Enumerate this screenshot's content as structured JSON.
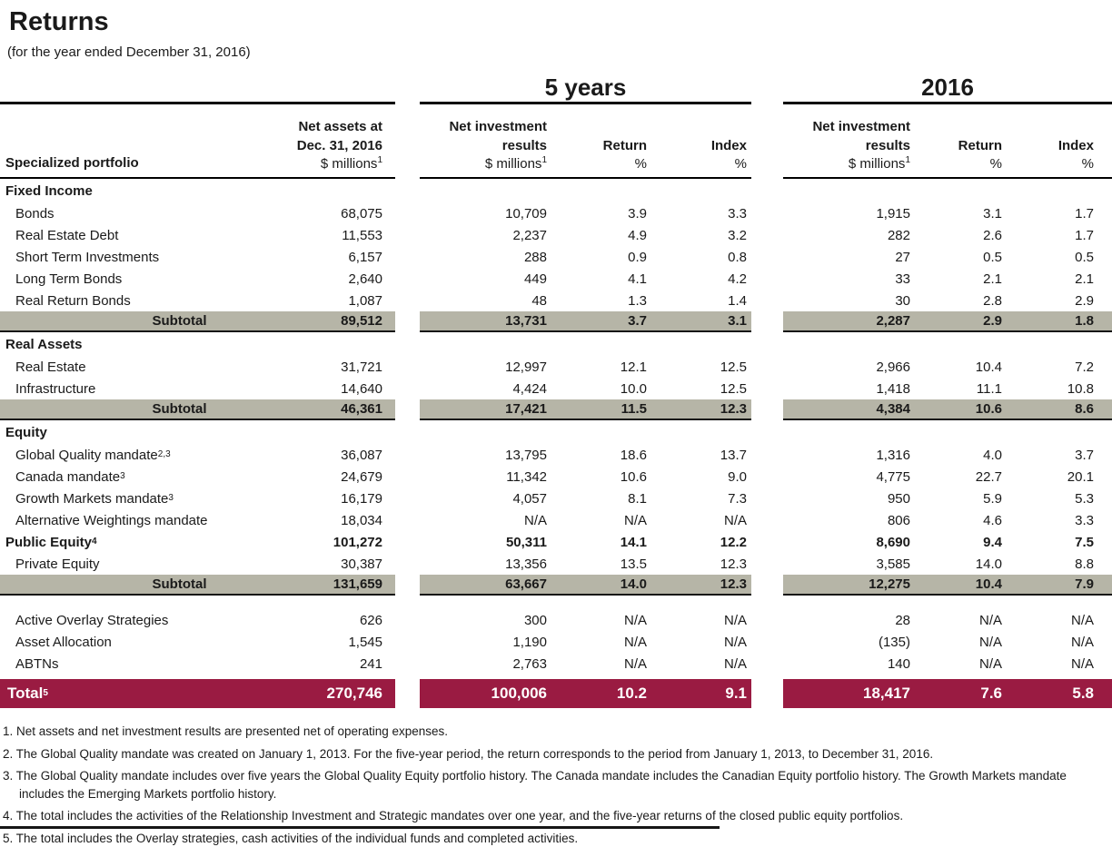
{
  "page": {
    "title": "Returns",
    "subtitle": "(for the year ended December 31, 2016)"
  },
  "colors": {
    "subtotal_row_bg": "#b6b5a7",
    "total_row_bg": "#9a1b42",
    "total_row_text": "#ffffff",
    "rule": "#000000"
  },
  "header": {
    "group_5y": "5 years",
    "group_2016": "2016",
    "left_label": "Specialized portfolio",
    "net_assets_line1": "Net assets at",
    "net_assets_line2": "Dec. 31, 2016",
    "millions": "$ millions",
    "millions_sup": "1",
    "nir_line1": "Net investment",
    "nir_line2": "results",
    "return_label": "Return",
    "index_label": "Index",
    "pct": "%"
  },
  "table": {
    "groups": [
      {
        "heading": "Fixed Income",
        "rows": [
          {
            "label": "Bonds",
            "na": "68,075",
            "y5m": "10,709",
            "y5r": "3.9",
            "y5i": "3.3",
            "cm": "1,915",
            "cr": "3.1",
            "ci": "1.7"
          },
          {
            "label": "Real Estate Debt",
            "na": "11,553",
            "y5m": "2,237",
            "y5r": "4.9",
            "y5i": "3.2",
            "cm": "282",
            "cr": "2.6",
            "ci": "1.7"
          },
          {
            "label": "Short Term Investments",
            "na": "6,157",
            "y5m": "288",
            "y5r": "0.9",
            "y5i": "0.8",
            "cm": "27",
            "cr": "0.5",
            "ci": "0.5"
          },
          {
            "label": "Long Term Bonds",
            "na": "2,640",
            "y5m": "449",
            "y5r": "4.1",
            "y5i": "4.2",
            "cm": "33",
            "cr": "2.1",
            "ci": "2.1"
          },
          {
            "label": "Real Return Bonds",
            "na": "1,087",
            "y5m": "48",
            "y5r": "1.3",
            "y5i": "1.4",
            "cm": "30",
            "cr": "2.8",
            "ci": "2.9"
          }
        ],
        "subtotal": {
          "label": "Subtotal",
          "na": "89,512",
          "y5m": "13,731",
          "y5r": "3.7",
          "y5i": "3.1",
          "cm": "2,287",
          "cr": "2.9",
          "ci": "1.8"
        }
      },
      {
        "heading": "Real Assets",
        "rows": [
          {
            "label": "Real Estate",
            "na": "31,721",
            "y5m": "12,997",
            "y5r": "12.1",
            "y5i": "12.5",
            "cm": "2,966",
            "cr": "10.4",
            "ci": "7.2"
          },
          {
            "label": "Infrastructure",
            "na": "14,640",
            "y5m": "4,424",
            "y5r": "10.0",
            "y5i": "12.5",
            "cm": "1,418",
            "cr": "11.1",
            "ci": "10.8"
          }
        ],
        "subtotal": {
          "label": "Subtotal",
          "na": "46,361",
          "y5m": "17,421",
          "y5r": "11.5",
          "y5i": "12.3",
          "cm": "4,384",
          "cr": "10.6",
          "ci": "8.6"
        }
      },
      {
        "heading": "Equity",
        "rows": [
          {
            "label": "Global Quality mandate",
            "sup": "2,3",
            "na": "36,087",
            "y5m": "13,795",
            "y5r": "18.6",
            "y5i": "13.7",
            "cm": "1,316",
            "cr": "4.0",
            "ci": "3.7"
          },
          {
            "label": "Canada mandate",
            "sup": "3",
            "na": "24,679",
            "y5m": "11,342",
            "y5r": "10.6",
            "y5i": "9.0",
            "cm": "4,775",
            "cr": "22.7",
            "ci": "20.1"
          },
          {
            "label": "Growth Markets mandate",
            "sup": "3",
            "na": "16,179",
            "y5m": "4,057",
            "y5r": "8.1",
            "y5i": "7.3",
            "cm": "950",
            "cr": "5.9",
            "ci": "5.3"
          },
          {
            "label": "Alternative Weightings mandate",
            "na": "18,034",
            "y5m": "N/A",
            "y5r": "N/A",
            "y5i": "N/A",
            "cm": "806",
            "cr": "4.6",
            "ci": "3.3"
          },
          {
            "label": "Public Equity",
            "sup": "4",
            "na": "101,272",
            "y5m": "50,311",
            "y5r": "14.1",
            "y5i": "12.2",
            "cm": "8,690",
            "cr": "9.4",
            "ci": "7.5"
          },
          {
            "label": "Private Equity",
            "na": "30,387",
            "y5m": "13,356",
            "y5r": "13.5",
            "y5i": "12.3",
            "cm": "3,585",
            "cr": "14.0",
            "ci": "8.8"
          }
        ],
        "subtotal": {
          "label": "Subtotal",
          "na": "131,659",
          "y5m": "63,667",
          "y5r": "14.0",
          "y5i": "12.3",
          "cm": "12,275",
          "cr": "10.4",
          "ci": "7.9"
        }
      }
    ],
    "other_rows": [
      {
        "label": "Active Overlay Strategies",
        "na": "626",
        "y5m": "300",
        "y5r": "N/A",
        "y5i": "N/A",
        "cm": "28",
        "cr": "N/A",
        "ci": "N/A"
      },
      {
        "label": "Asset Allocation",
        "na": "1,545",
        "y5m": "1,190",
        "y5r": "N/A",
        "y5i": "N/A",
        "cm": "(135)",
        "cr": "N/A",
        "ci": "N/A"
      },
      {
        "label": "ABTNs",
        "na": "241",
        "y5m": "2,763",
        "y5r": "N/A",
        "y5i": "N/A",
        "cm": "140",
        "cr": "N/A",
        "ci": "N/A"
      }
    ],
    "total": {
      "label": "Total",
      "sup": "5",
      "na": "270,746",
      "y5m": "100,006",
      "y5r": "10.2",
      "y5i": "9.1",
      "cm": "18,417",
      "cr": "7.6",
      "ci": "5.8"
    }
  },
  "footnotes": [
    "1. Net assets and net investment results are presented net of operating expenses.",
    "2. The Global Quality mandate was created on January 1, 2013. For the five-year period, the return corresponds to the period from January 1, 2013, to December 31, 2016.",
    "3. The Global Quality mandate includes over five years the Global Quality Equity portfolio history. The Canada mandate includes the Canadian Equity portfolio history. The Growth Markets mandate includes the Emerging Markets portfolio history.",
    "4. The total includes the activities of the Relationship Investment and Strategic mandates over one year, and the five-year returns of the closed public equity portfolios.",
    "5. The total includes the Overlay strategies, cash activities of the individual funds and completed activities."
  ]
}
